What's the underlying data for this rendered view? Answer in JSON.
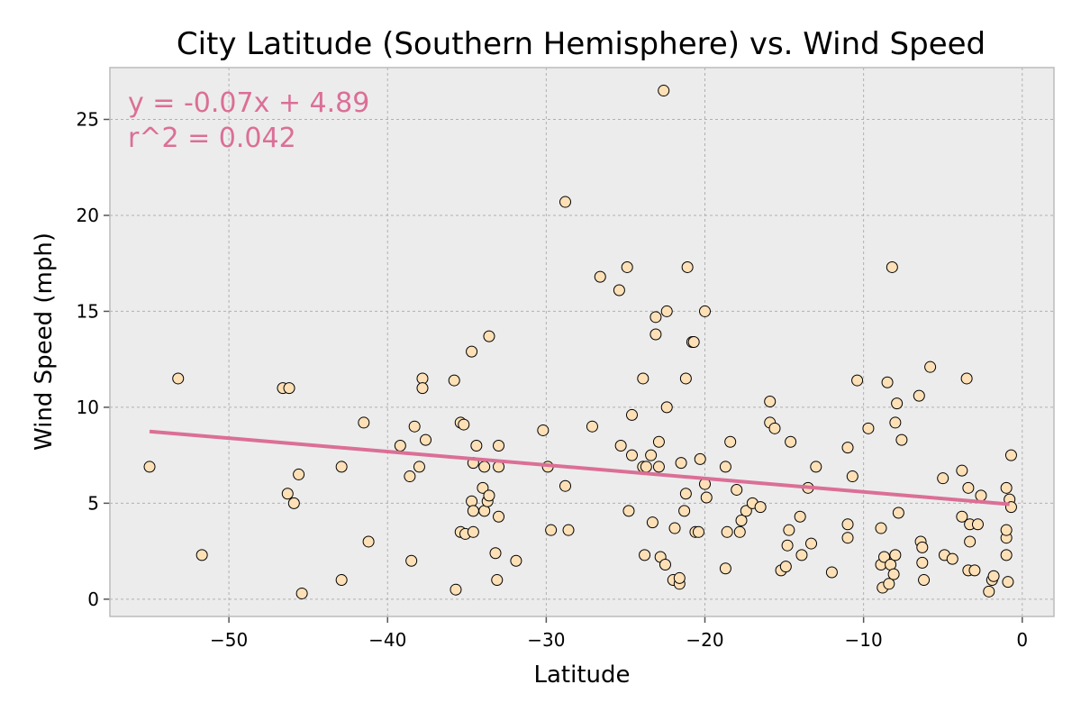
{
  "chart_data": {
    "type": "scatter",
    "title": "City Latitude (Southern Hemisphere) vs. Wind Speed",
    "xlabel": "Latitude",
    "ylabel": "Wind Speed (mph)",
    "xlim": [
      -57.5,
      2.0
    ],
    "ylim": [
      -0.9,
      27.7
    ],
    "xticks": [
      -50,
      -40,
      -30,
      -20,
      -10,
      0
    ],
    "yticks": [
      0,
      5,
      10,
      15,
      20,
      25
    ],
    "grid": true,
    "colors": {
      "background": "#ececec",
      "point_fill": "#fde0b6",
      "point_edge": "#000000",
      "regression_line": "#db6f96",
      "grid": "#b0b0b0",
      "spine": "#bcbcbc"
    },
    "annotations": [
      "y = -0.07x + 4.89",
      "r^2 = 0.042"
    ],
    "regression": {
      "slope": -0.07,
      "intercept": 4.89,
      "x_range": [
        -55.0,
        -0.8
      ]
    },
    "points": [
      [
        -55.0,
        6.9
      ],
      [
        -53.2,
        11.5
      ],
      [
        -51.7,
        2.3
      ],
      [
        -46.6,
        11.0
      ],
      [
        -46.2,
        11.0
      ],
      [
        -46.3,
        5.5
      ],
      [
        -45.9,
        5.0
      ],
      [
        -45.6,
        6.5
      ],
      [
        -45.4,
        0.3
      ],
      [
        -42.9,
        6.9
      ],
      [
        -42.9,
        1.0
      ],
      [
        -41.5,
        9.2
      ],
      [
        -41.2,
        3.0
      ],
      [
        -39.2,
        8.0
      ],
      [
        -38.6,
        6.4
      ],
      [
        -38.5,
        2.0
      ],
      [
        -38.3,
        9.0
      ],
      [
        -38.0,
        6.9
      ],
      [
        -37.8,
        11.5
      ],
      [
        -37.8,
        11.0
      ],
      [
        -37.6,
        8.3
      ],
      [
        -35.8,
        11.4
      ],
      [
        -35.7,
        0.5
      ],
      [
        -35.4,
        9.2
      ],
      [
        -35.4,
        3.5
      ],
      [
        -35.2,
        9.1
      ],
      [
        -35.1,
        3.4
      ],
      [
        -34.7,
        12.9
      ],
      [
        -34.7,
        5.1
      ],
      [
        -34.6,
        7.1
      ],
      [
        -34.6,
        4.6
      ],
      [
        -34.6,
        3.5
      ],
      [
        -34.4,
        8.0
      ],
      [
        -34.0,
        5.8
      ],
      [
        -33.9,
        6.9
      ],
      [
        -33.9,
        4.6
      ],
      [
        -33.7,
        5.1
      ],
      [
        -33.6,
        13.7
      ],
      [
        -33.6,
        5.4
      ],
      [
        -33.2,
        2.4
      ],
      [
        -33.1,
        1.0
      ],
      [
        -33.0,
        4.3
      ],
      [
        -33.0,
        6.9
      ],
      [
        -33.0,
        8.0
      ],
      [
        -31.9,
        2.0
      ],
      [
        -30.2,
        8.8
      ],
      [
        -29.9,
        6.9
      ],
      [
        -29.7,
        3.6
      ],
      [
        -28.8,
        20.7
      ],
      [
        -28.8,
        5.9
      ],
      [
        -28.6,
        3.6
      ],
      [
        -27.1,
        9.0
      ],
      [
        -26.6,
        16.8
      ],
      [
        -25.4,
        16.1
      ],
      [
        -25.3,
        8.0
      ],
      [
        -24.9,
        17.3
      ],
      [
        -24.8,
        4.6
      ],
      [
        -24.6,
        9.6
      ],
      [
        -24.6,
        7.5
      ],
      [
        -23.9,
        11.5
      ],
      [
        -23.9,
        6.9
      ],
      [
        -23.8,
        2.3
      ],
      [
        -23.7,
        6.9
      ],
      [
        -23.4,
        7.5
      ],
      [
        -23.3,
        4.0
      ],
      [
        -23.1,
        14.7
      ],
      [
        -23.1,
        13.8
      ],
      [
        -22.9,
        8.2
      ],
      [
        -22.9,
        6.9
      ],
      [
        -22.8,
        2.2
      ],
      [
        -22.6,
        26.5
      ],
      [
        -22.5,
        1.8
      ],
      [
        -22.4,
        15.0
      ],
      [
        -22.4,
        10.0
      ],
      [
        -22.0,
        1.0
      ],
      [
        -21.9,
        3.7
      ],
      [
        -21.6,
        0.8
      ],
      [
        -21.6,
        1.1
      ],
      [
        -21.5,
        7.1
      ],
      [
        -21.3,
        4.6
      ],
      [
        -21.2,
        11.5
      ],
      [
        -21.2,
        5.5
      ],
      [
        -21.1,
        17.3
      ],
      [
        -20.8,
        13.4
      ],
      [
        -20.7,
        13.4
      ],
      [
        -20.6,
        3.5
      ],
      [
        -20.4,
        3.5
      ],
      [
        -20.3,
        7.3
      ],
      [
        -20.0,
        15.0
      ],
      [
        -20.0,
        6.0
      ],
      [
        -19.9,
        5.3
      ],
      [
        -18.7,
        6.9
      ],
      [
        -18.7,
        1.6
      ],
      [
        -18.6,
        3.5
      ],
      [
        -18.4,
        8.2
      ],
      [
        -18.0,
        5.7
      ],
      [
        -17.8,
        3.5
      ],
      [
        -17.7,
        4.1
      ],
      [
        -17.4,
        4.6
      ],
      [
        -17.0,
        5.0
      ],
      [
        -16.5,
        4.8
      ],
      [
        -15.9,
        10.3
      ],
      [
        -15.9,
        9.2
      ],
      [
        -15.6,
        8.9
      ],
      [
        -15.2,
        1.5
      ],
      [
        -14.9,
        1.7
      ],
      [
        -14.8,
        2.8
      ],
      [
        -14.7,
        3.6
      ],
      [
        -14.6,
        8.2
      ],
      [
        -14.0,
        4.3
      ],
      [
        -13.9,
        2.3
      ],
      [
        -13.5,
        5.8
      ],
      [
        -13.3,
        2.9
      ],
      [
        -13.0,
        6.9
      ],
      [
        -12.0,
        1.4
      ],
      [
        -11.0,
        7.9
      ],
      [
        -11.0,
        3.9
      ],
      [
        -11.0,
        3.2
      ],
      [
        -10.7,
        6.4
      ],
      [
        -10.4,
        11.4
      ],
      [
        -9.7,
        8.9
      ],
      [
        -8.9,
        3.7
      ],
      [
        -8.9,
        1.8
      ],
      [
        -8.8,
        0.6
      ],
      [
        -8.7,
        2.2
      ],
      [
        -8.5,
        11.3
      ],
      [
        -8.4,
        0.8
      ],
      [
        -8.3,
        1.8
      ],
      [
        -8.2,
        17.3
      ],
      [
        -8.1,
        1.3
      ],
      [
        -8.0,
        2.3
      ],
      [
        -8.0,
        9.2
      ],
      [
        -7.9,
        10.2
      ],
      [
        -7.8,
        4.5
      ],
      [
        -7.6,
        8.3
      ],
      [
        -6.5,
        10.6
      ],
      [
        -6.4,
        3.0
      ],
      [
        -6.3,
        2.7
      ],
      [
        -6.3,
        1.9
      ],
      [
        -6.2,
        1.0
      ],
      [
        -5.8,
        12.1
      ],
      [
        -5.0,
        6.3
      ],
      [
        -4.9,
        2.3
      ],
      [
        -4.4,
        2.1
      ],
      [
        -3.8,
        6.7
      ],
      [
        -3.8,
        4.3
      ],
      [
        -3.5,
        11.5
      ],
      [
        -3.4,
        1.5
      ],
      [
        -3.4,
        5.8
      ],
      [
        -3.3,
        3.9
      ],
      [
        -3.3,
        3.0
      ],
      [
        -3.0,
        1.5
      ],
      [
        -2.8,
        3.9
      ],
      [
        -2.6,
        5.4
      ],
      [
        -2.1,
        0.4
      ],
      [
        -1.9,
        1.0
      ],
      [
        -1.8,
        1.2
      ],
      [
        -1.0,
        5.8
      ],
      [
        -1.0,
        3.2
      ],
      [
        -1.0,
        3.6
      ],
      [
        -1.0,
        2.3
      ],
      [
        -0.8,
        5.2
      ],
      [
        -0.7,
        7.5
      ],
      [
        -0.7,
        4.8
      ],
      [
        -0.9,
        0.9
      ]
    ]
  }
}
